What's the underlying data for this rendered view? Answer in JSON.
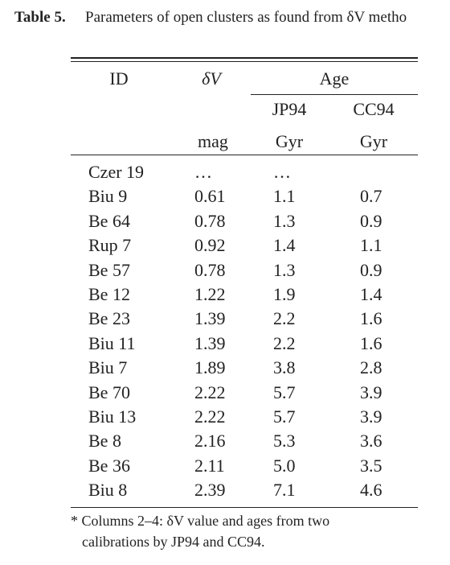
{
  "caption": {
    "label": "Table 5.",
    "text": "Parameters of open clusters as found from δV metho"
  },
  "table": {
    "headers": {
      "id": "ID",
      "dv": "δV",
      "age": "Age",
      "jp94": "JP94",
      "cc94": "CC94",
      "dv_unit": "mag",
      "jp94_unit": "Gyr",
      "cc94_unit": "Gyr"
    },
    "rows": [
      [
        "Czer 19",
        "…",
        "…"
      ],
      [
        "Biu 9",
        "0.61",
        "1.1",
        "0.7"
      ],
      [
        "Be 64",
        "0.78",
        "1.3",
        "0.9"
      ],
      [
        "Rup 7",
        "0.92",
        "1.4",
        "1.1"
      ],
      [
        "Be 57",
        "0.78",
        "1.3",
        "0.9"
      ],
      [
        "Be 12",
        "1.22",
        "1.9",
        "1.4"
      ],
      [
        "Be 23",
        "1.39",
        "2.2",
        "1.6"
      ],
      [
        "Biu 11",
        "1.39",
        "2.2",
        "1.6"
      ],
      [
        "Biu 7",
        "1.89",
        "3.8",
        "2.8"
      ],
      [
        "Be 70",
        "2.22",
        "5.7",
        "3.9"
      ],
      [
        "Biu 13",
        "2.22",
        "5.7",
        "3.9"
      ],
      [
        "Be 8",
        "2.16",
        "5.3",
        "3.6"
      ],
      [
        "Be 36",
        "2.11",
        "5.0",
        "3.5"
      ],
      [
        "Biu 8",
        "2.39",
        "7.1",
        "4.6"
      ]
    ]
  },
  "footnote": {
    "lines": [
      "* Columns 2–4:  δV value and ages from two",
      "calibrations by JP94 and CC94."
    ]
  }
}
